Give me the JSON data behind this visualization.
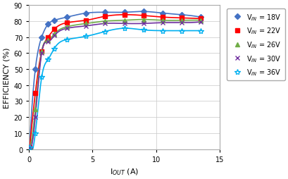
{
  "title": "",
  "xlabel": "I$_{OUT}$ (A)",
  "ylabel": "EFFICIENCY (%)",
  "xlim": [
    0,
    15
  ],
  "ylim": [
    0,
    90
  ],
  "xticks": [
    0,
    5,
    10,
    15
  ],
  "yticks": [
    0,
    10,
    20,
    30,
    40,
    50,
    60,
    70,
    80,
    90
  ],
  "series": [
    {
      "label": "V$_{IN}$ = 18V",
      "color": "#4472C4",
      "marker": "D",
      "markersize": 4,
      "x": [
        0.05,
        0.5,
        1.0,
        1.5,
        2.0,
        3.0,
        4.5,
        6.0,
        7.5,
        9.0,
        10.5,
        12.0,
        13.5
      ],
      "y": [
        1.0,
        50.0,
        70.0,
        78.0,
        80.5,
        82.5,
        85.0,
        85.5,
        85.5,
        86.0,
        85.0,
        84.0,
        82.5
      ]
    },
    {
      "label": "V$_{IN}$ = 22V",
      "color": "#FF0000",
      "marker": "s",
      "markersize": 4,
      "x": [
        0.05,
        0.5,
        1.0,
        1.5,
        2.0,
        3.0,
        4.5,
        6.0,
        7.5,
        9.0,
        10.5,
        12.0,
        13.5
      ],
      "y": [
        1.0,
        35.0,
        61.0,
        70.0,
        75.0,
        79.0,
        80.5,
        83.0,
        84.0,
        83.5,
        82.5,
        82.0,
        81.5
      ]
    },
    {
      "label": "V$_{IN}$ = 26V",
      "color": "#70AD47",
      "marker": "^",
      "markersize": 4,
      "x": [
        0.05,
        0.5,
        1.0,
        1.5,
        2.0,
        3.0,
        4.5,
        6.0,
        7.5,
        9.0,
        10.5,
        12.0,
        13.5
      ],
      "y": [
        1.0,
        25.0,
        61.0,
        68.0,
        72.0,
        76.5,
        78.5,
        80.0,
        80.5,
        81.0,
        80.5,
        80.5,
        80.5
      ]
    },
    {
      "label": "V$_{IN}$ = 30V",
      "color": "#7030A0",
      "marker": "x",
      "markersize": 5,
      "x": [
        0.05,
        0.5,
        1.0,
        1.5,
        2.0,
        3.0,
        4.5,
        6.0,
        7.5,
        9.0,
        10.5,
        12.0,
        13.5
      ],
      "y": [
        1.0,
        20.0,
        60.0,
        67.0,
        71.0,
        75.5,
        77.0,
        78.5,
        78.5,
        78.5,
        79.0,
        79.0,
        79.5
      ]
    },
    {
      "label": "V$_{IN}$ = 36V",
      "color": "#00B0F0",
      "marker": "*",
      "markersize": 6,
      "x": [
        0.05,
        0.5,
        1.0,
        1.5,
        2.0,
        3.0,
        4.5,
        6.0,
        7.5,
        9.0,
        10.5,
        12.0,
        13.5
      ],
      "y": [
        1.0,
        10.0,
        45.0,
        56.0,
        63.0,
        68.5,
        70.5,
        73.5,
        75.5,
        74.5,
        74.0,
        74.0,
        74.0
      ]
    }
  ],
  "background_color": "#ffffff",
  "grid_color": "#c8c8c8",
  "legend_fontsize": 7,
  "tick_fontsize": 7,
  "label_fontsize": 8,
  "figsize": [
    4.1,
    2.55
  ],
  "dpi": 100
}
